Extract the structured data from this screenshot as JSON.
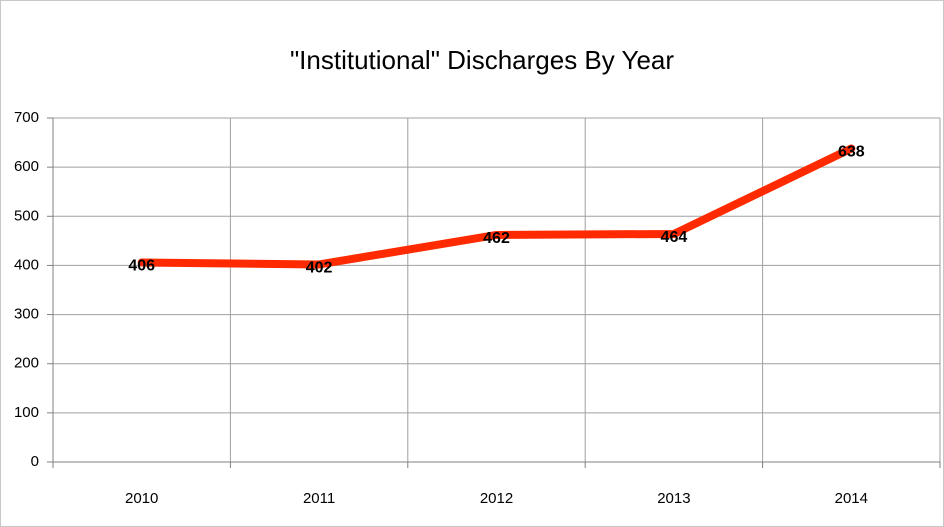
{
  "chart_data": {
    "type": "line",
    "title": "\"Institutional\" Discharges By Year",
    "categories": [
      "2010",
      "2011",
      "2012",
      "2013",
      "2014"
    ],
    "values": [
      406,
      402,
      462,
      464,
      638
    ],
    "color": "#ff2a00",
    "ylim": [
      0,
      700
    ],
    "yticks": [
      0,
      100,
      200,
      300,
      400,
      500,
      600,
      700
    ],
    "grid": true
  }
}
